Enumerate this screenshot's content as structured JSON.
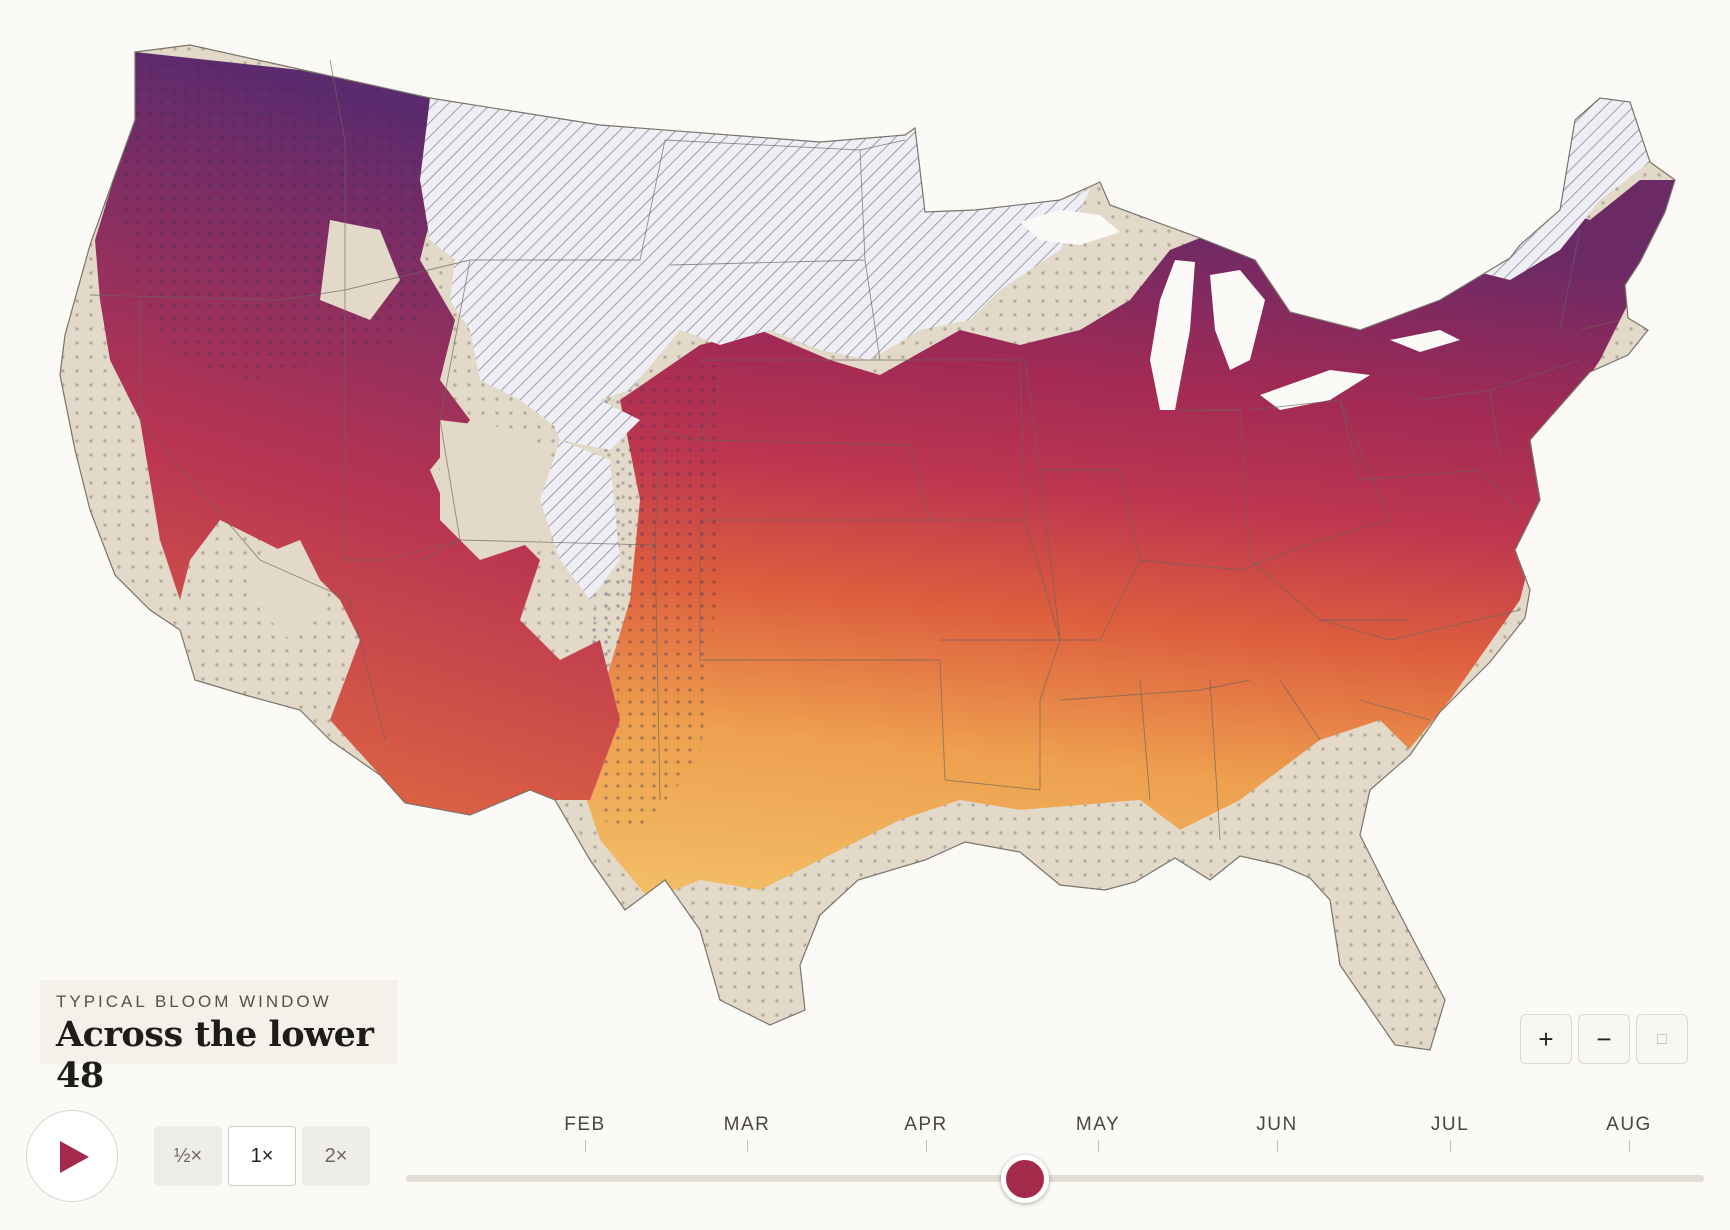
{
  "title_card": {
    "kicker": "TYPICAL BLOOM WINDOW",
    "title": "Across the lower 48"
  },
  "zoom": {
    "zoom_in_label": "+",
    "zoom_out_label": "−",
    "reset_icon": "square-icon"
  },
  "playback": {
    "play_icon": "play-icon",
    "speeds": [
      "½×",
      "1×",
      "2×"
    ],
    "selected_speed": "1×"
  },
  "timeline": {
    "months": [
      "FEB",
      "MAR",
      "APR",
      "MAY",
      "JUN",
      "JUL",
      "AUG"
    ],
    "current_position_fraction": 0.477
  },
  "colors": {
    "early_bloom": "#f2b25a",
    "mid_bloom": "#e0643f",
    "peak_bloom": "#ad2b50",
    "late_bloom": "#5a2a6e",
    "no_data": "#e2d9c9",
    "slider_thumb": "#a42a4c",
    "play_icon": "#a42a4c"
  }
}
